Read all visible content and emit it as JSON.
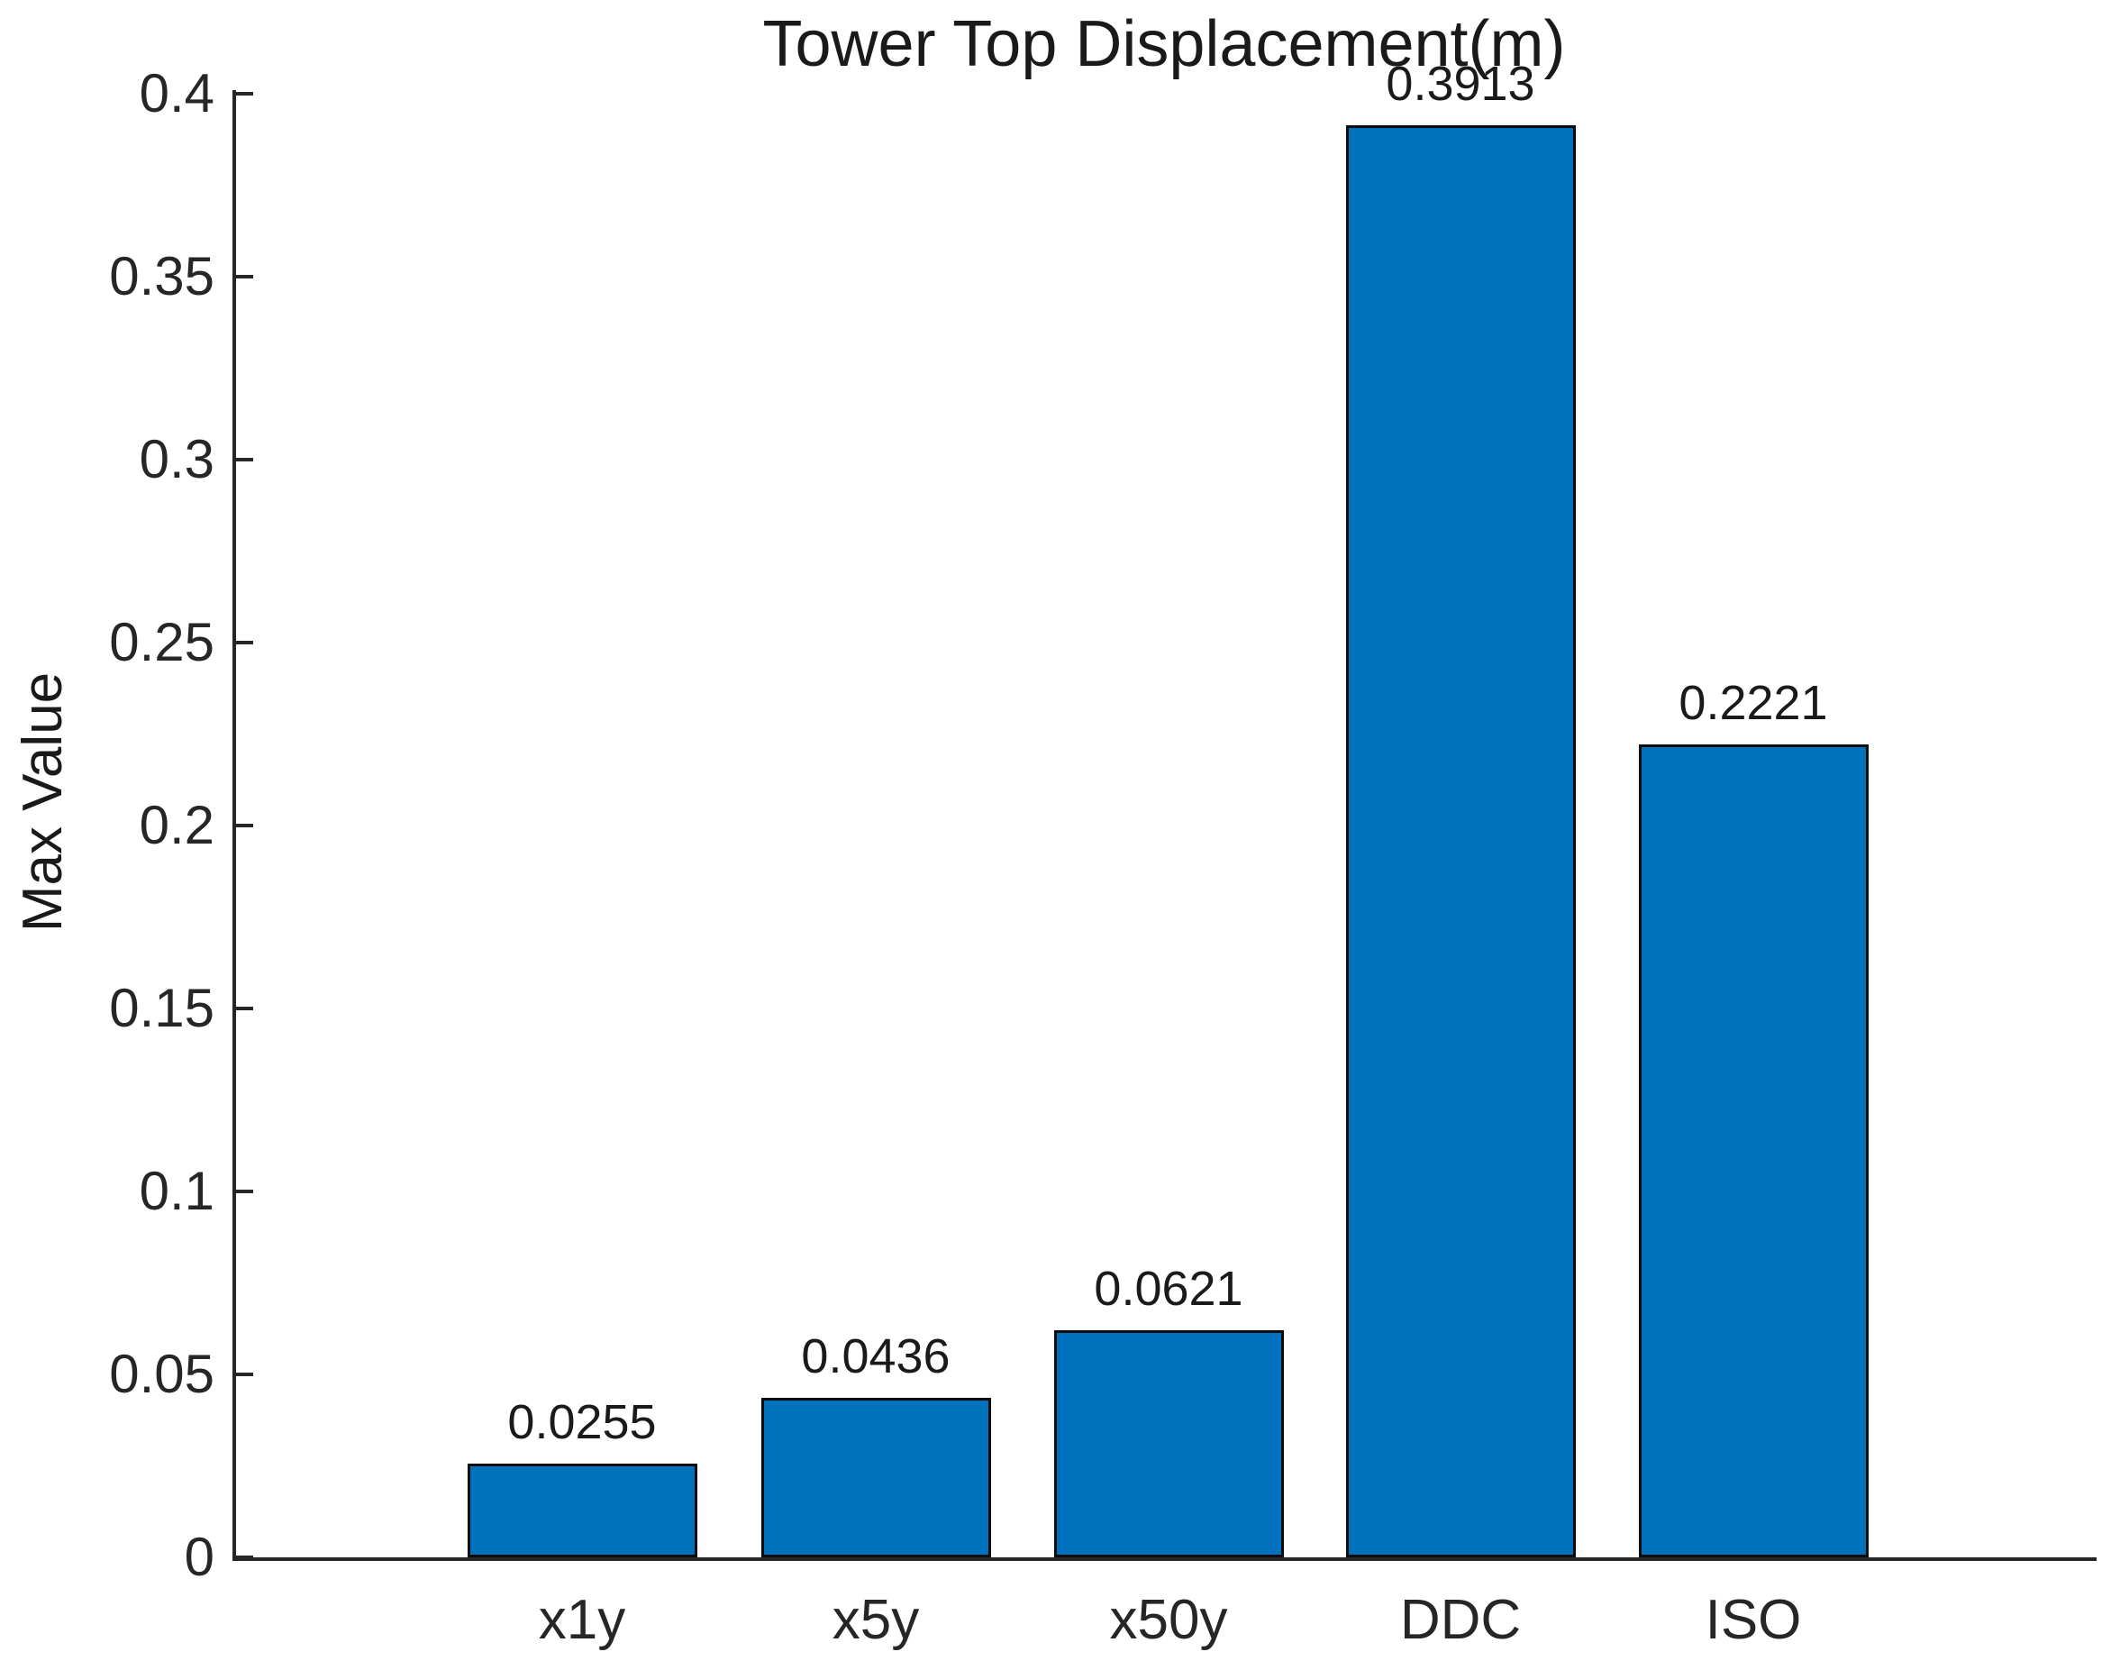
{
  "chart_data": {
    "type": "bar",
    "title": "Tower Top Displacement(m)",
    "xlabel": "",
    "ylabel": "Max Value",
    "categories": [
      "x1y",
      "x5y",
      "x50y",
      "DDC",
      "ISO"
    ],
    "values": [
      0.0255,
      0.0436,
      0.0621,
      0.3913,
      0.2221
    ],
    "bar_labels": [
      "0.0255",
      "0.0436",
      "0.0621",
      "0.3913",
      "0.2221"
    ],
    "ylim": [
      0,
      0.4
    ],
    "yticks": [
      0,
      0.05,
      0.1,
      0.15,
      0.2,
      0.25,
      0.3,
      0.35,
      0.4
    ],
    "ytick_labels": [
      "0",
      "0.05",
      "0.1",
      "0.15",
      "0.2",
      "0.25",
      "0.3",
      "0.35",
      "0.4"
    ],
    "grid": false,
    "legend": null,
    "bar_color": "#0072BD",
    "bar_edge_color": "#0b0b0b",
    "axis_color": "#262626",
    "background_color": "#ffffff"
  }
}
